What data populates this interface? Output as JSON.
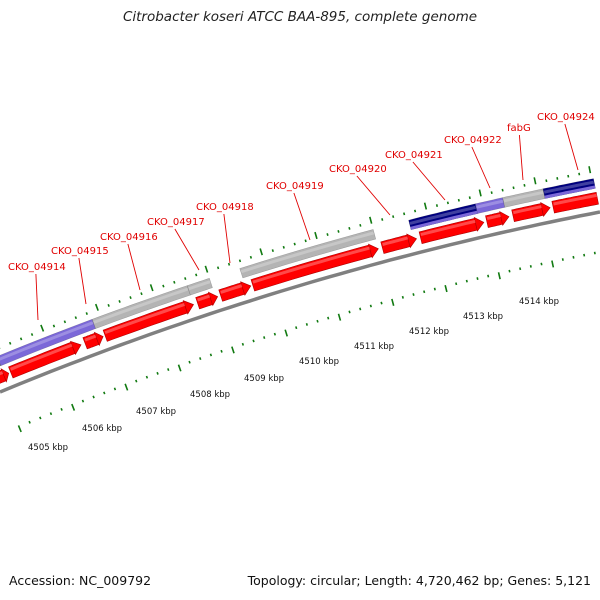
{
  "title": "Citrobacter koseri ATCC BAA-895, complete genome",
  "footer": {
    "accession": "Accession: NC_009792",
    "stats": "Topology: circular; Length: 4,720,462 bp; Genes: 5,121"
  },
  "colors": {
    "cds": "#ff0000",
    "cds_dark": "#b00000",
    "gene_light": "#b4b4b4",
    "gene_blue": "#7b68d8",
    "gene_navy": "#000080",
    "backbone": "#808080",
    "tick": "#117a11",
    "label": "#e00000"
  },
  "gene_labels": [
    "CKO_04914",
    "CKO_04915",
    "CKO_04916",
    "CKO_04917",
    "CKO_04918",
    "CKO_04919",
    "CKO_04920",
    "CKO_04921",
    "CKO_04922",
    "fabG",
    "CKO_04924"
  ],
  "scale_labels": [
    "4505 kbp",
    "4506 kbp",
    "4507 kbp",
    "4508 kbp",
    "4509 kbp",
    "4510 kbp",
    "4511 kbp",
    "4512 kbp",
    "4513 kbp",
    "4514 kbp"
  ]
}
